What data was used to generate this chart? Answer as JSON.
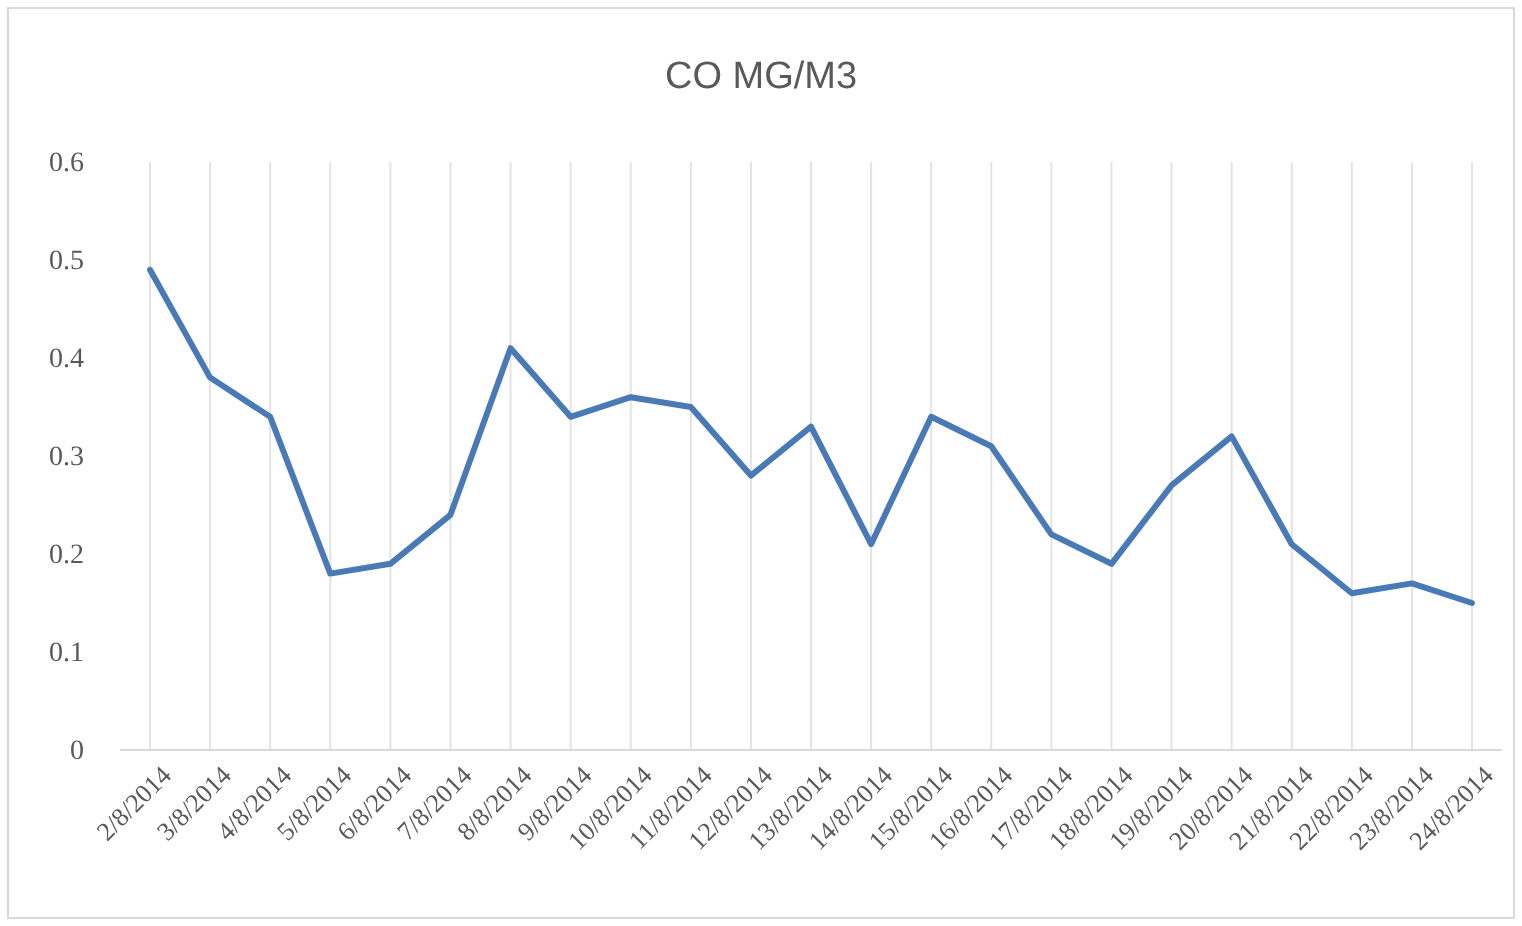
{
  "chart_data": {
    "type": "line",
    "title": "CO MG/M3",
    "categories": [
      "2/8/2014",
      "3/8/2014",
      "4/8/2014",
      "5/8/2014",
      "6/8/2014",
      "7/8/2014",
      "8/8/2014",
      "9/8/2014",
      "10/8/2014",
      "11/8/2014",
      "12/8/2014",
      "13/8/2014",
      "14/8/2014",
      "15/8/2014",
      "16/8/2014",
      "17/8/2014",
      "18/8/2014",
      "19/8/2014",
      "20/8/2014",
      "21/8/2014",
      "22/8/2014",
      "23/8/2014",
      "24/8/2014"
    ],
    "series": [
      {
        "color": "#4a7ab5",
        "values": [
          0.49,
          0.38,
          0.34,
          0.18,
          0.19,
          0.24,
          0.41,
          0.34,
          0.36,
          0.35,
          0.28,
          0.33,
          0.21,
          0.34,
          0.31,
          0.22,
          0.19,
          0.27,
          0.32,
          0.21,
          0.16,
          0.17,
          0.15
        ]
      }
    ],
    "ylim": [
      0,
      0.6
    ],
    "yticks": [
      0,
      0.1,
      0.2,
      0.3,
      0.4,
      0.5,
      0.6
    ],
    "grid": "x",
    "marker": "none",
    "line_style": "solid"
  }
}
